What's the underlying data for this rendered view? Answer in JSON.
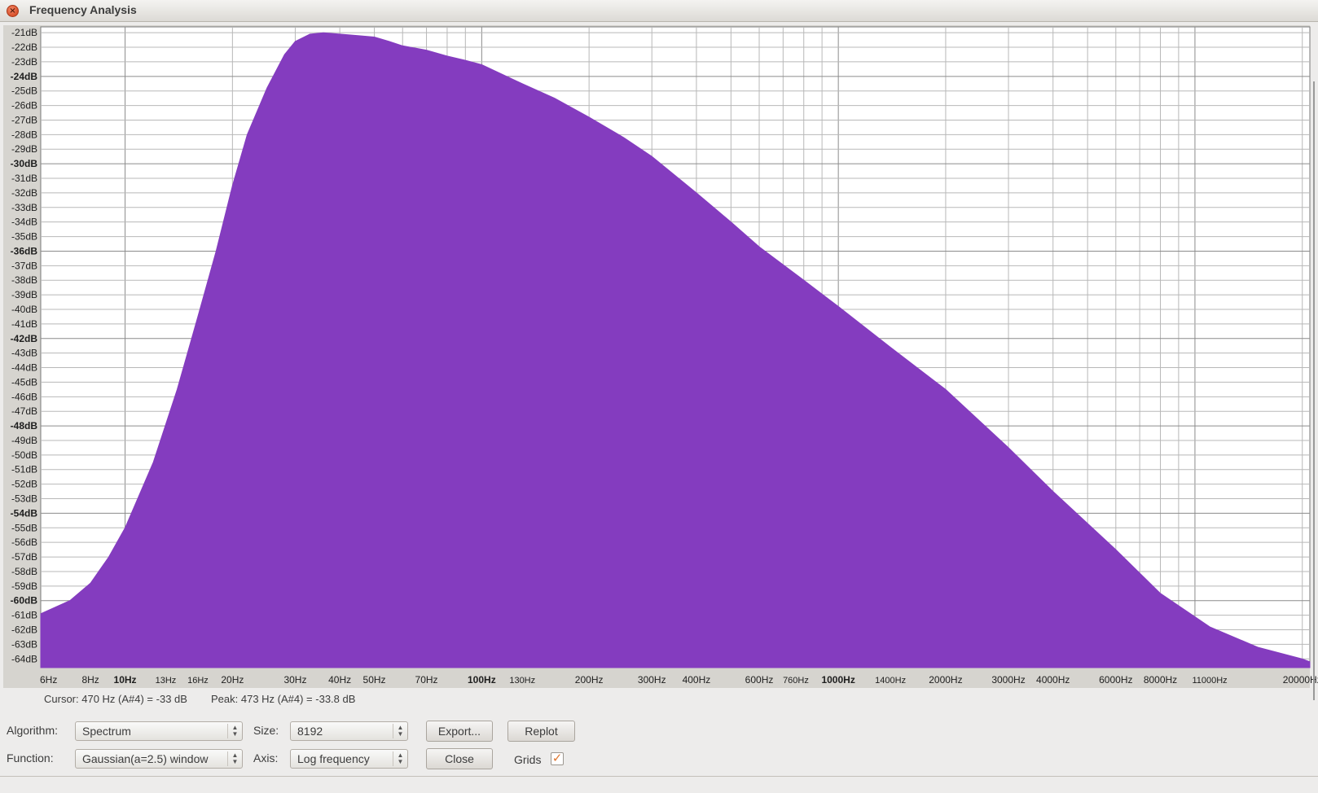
{
  "window": {
    "title": "Frequency Analysis"
  },
  "plot": {
    "fill_color": "#843cbf",
    "db_labels": [
      "-21dB",
      "-22dB",
      "-23dB",
      "-24dB",
      "-25dB",
      "-26dB",
      "-27dB",
      "-28dB",
      "-29dB",
      "-30dB",
      "-31dB",
      "-32dB",
      "-33dB",
      "-34dB",
      "-35dB",
      "-36dB",
      "-37dB",
      "-38dB",
      "-39dB",
      "-40dB",
      "-41dB",
      "-42dB",
      "-43dB",
      "-44dB",
      "-45dB",
      "-46dB",
      "-47dB",
      "-48dB",
      "-49dB",
      "-50dB",
      "-51dB",
      "-52dB",
      "-53dB",
      "-54dB",
      "-55dB",
      "-56dB",
      "-57dB",
      "-58dB",
      "-59dB",
      "-60dB",
      "-61dB",
      "-62dB",
      "-63dB",
      "-64dB"
    ],
    "freq_labels": [
      "6Hz",
      "8Hz",
      "10Hz",
      "13Hz",
      "16Hz",
      "20Hz",
      "30Hz",
      "40Hz",
      "50Hz",
      "70Hz",
      "100Hz",
      "130Hz",
      "200Hz",
      "300Hz",
      "400Hz",
      "600Hz",
      "760Hz",
      "1000Hz",
      "1400Hz",
      "2000Hz",
      "3000Hz",
      "4000Hz",
      "6000Hz",
      "8000Hz",
      "11000Hz",
      "20000Hz"
    ],
    "freq_values": [
      6,
      8,
      10,
      13,
      16,
      20,
      30,
      40,
      50,
      70,
      100,
      130,
      200,
      300,
      400,
      600,
      760,
      1000,
      1400,
      2000,
      3000,
      4000,
      6000,
      8000,
      11000,
      20000
    ]
  },
  "chart_data": {
    "type": "area",
    "title": "",
    "xlabel": "",
    "ylabel": "",
    "x_scale": "log",
    "xlim": [
      5.8,
      21000
    ],
    "ylim": [
      -64.6,
      -20.6
    ],
    "series": [
      {
        "x": [
          5.8,
          7,
          8,
          9,
          10,
          12,
          14,
          16,
          18,
          20,
          22,
          25,
          28,
          30,
          33,
          36,
          40,
          45,
          50,
          55,
          60,
          70,
          80,
          90,
          100,
          130,
          160,
          200,
          250,
          300,
          400,
          500,
          600,
          800,
          1000,
          1400,
          2000,
          3000,
          4000,
          6000,
          8000,
          11000,
          15000,
          20000,
          21000
        ],
        "values": [
          -60.9,
          -60.0,
          -58.8,
          -57.0,
          -55.0,
          -50.5,
          -45.5,
          -40.5,
          -36.0,
          -31.5,
          -28.0,
          -24.8,
          -22.5,
          -21.6,
          -21.1,
          -21.0,
          -21.1,
          -21.2,
          -21.3,
          -21.6,
          -21.9,
          -22.2,
          -22.6,
          -22.9,
          -23.2,
          -24.5,
          -25.5,
          -26.8,
          -28.2,
          -29.5,
          -32.0,
          -34.0,
          -35.7,
          -38.0,
          -39.8,
          -42.6,
          -45.5,
          -49.5,
          -52.5,
          -56.5,
          -59.5,
          -61.8,
          -63.2,
          -64.0,
          -64.2
        ]
      }
    ]
  },
  "status": {
    "cursor": "Cursor: 470 Hz (A#4) = -33 dB",
    "peak": "Peak: 473 Hz (A#4) = -33.8 dB"
  },
  "controls": {
    "algorithm_label": "Algorithm:",
    "algorithm_value": "Spectrum",
    "function_label": "Function:",
    "function_value": "Gaussian(a=2.5) window",
    "size_label": "Size:",
    "size_value": "8192",
    "axis_label": "Axis:",
    "axis_value": "Log frequency",
    "export_button": "Export...",
    "replot_button": "Replot",
    "close_button": "Close",
    "grids_label": "Grids",
    "grids_checked": true
  }
}
